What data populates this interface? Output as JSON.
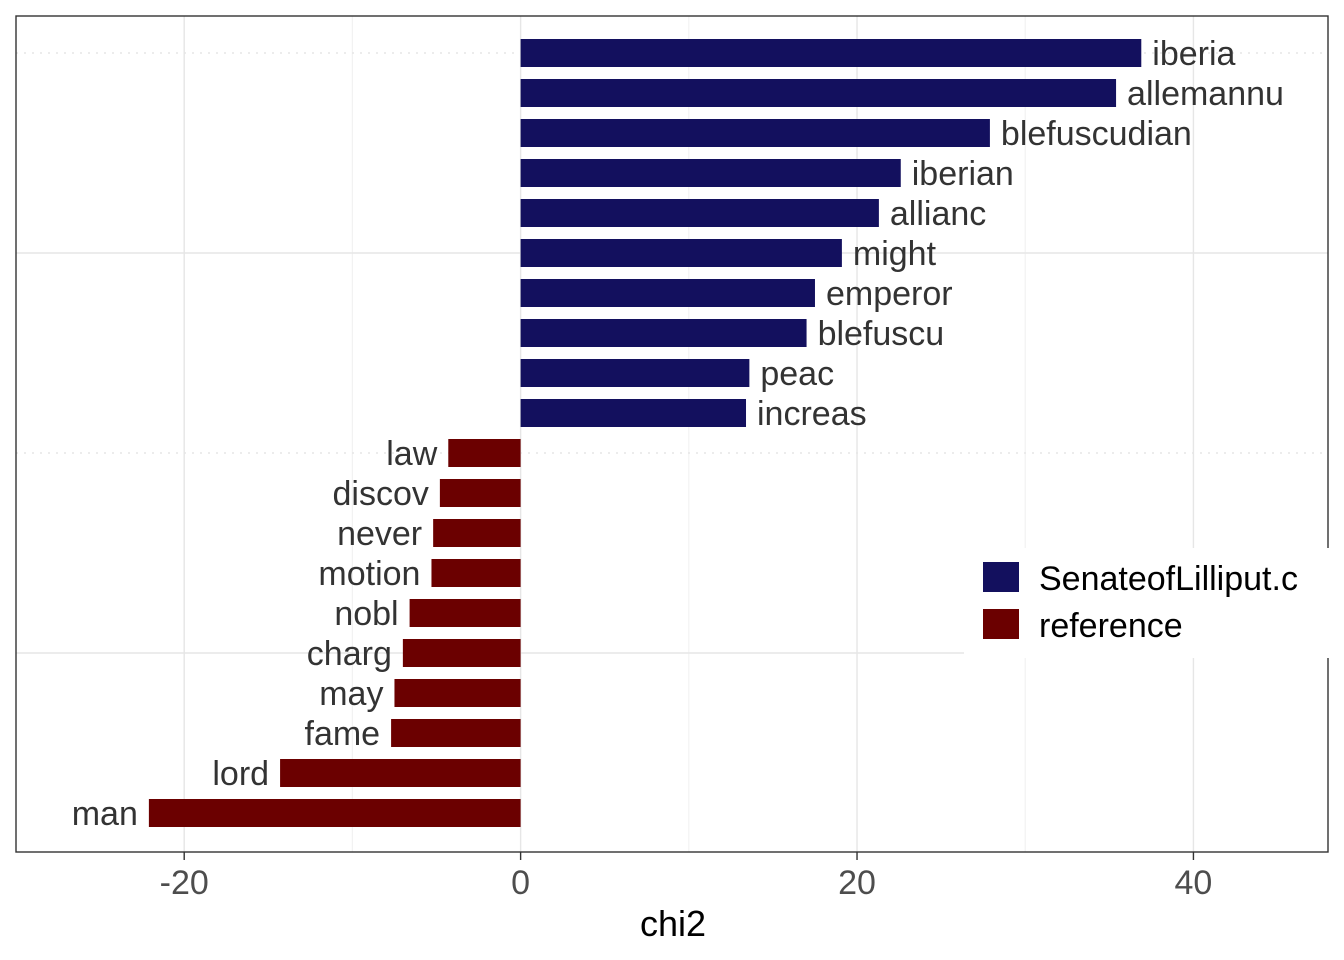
{
  "chart_data": {
    "type": "bar",
    "orientation": "horizontal",
    "xlabel": "chi2",
    "ylabel": "",
    "xlim": [
      -30,
      48
    ],
    "x_ticks": [
      -20,
      0,
      20,
      40
    ],
    "x_tick_labels": [
      "-20",
      "0",
      "20",
      "40"
    ],
    "grid": true,
    "legend_position": "right",
    "colors": {
      "target": "#13105e",
      "reference": "#6b0000",
      "grid_major": "#e6e6e6",
      "grid_minor": "#f2f2f2",
      "panel_border": "#333333"
    },
    "series": [
      {
        "name": "SenateofLilliput.c",
        "key": "target",
        "color": "#13105e"
      },
      {
        "name": "reference",
        "key": "reference",
        "color": "#6b0000"
      }
    ],
    "bars": [
      {
        "feature": "iberia",
        "value": 36.9,
        "group": "target"
      },
      {
        "feature": "allemannu",
        "value": 35.4,
        "group": "target"
      },
      {
        "feature": "blefuscudian",
        "value": 27.9,
        "group": "target"
      },
      {
        "feature": "iberian",
        "value": 22.6,
        "group": "target"
      },
      {
        "feature": "allianc",
        "value": 21.3,
        "group": "target"
      },
      {
        "feature": "might",
        "value": 19.1,
        "group": "target"
      },
      {
        "feature": "emperor",
        "value": 17.5,
        "group": "target"
      },
      {
        "feature": "blefuscu",
        "value": 17.0,
        "group": "target"
      },
      {
        "feature": "peac",
        "value": 13.6,
        "group": "target"
      },
      {
        "feature": "increas",
        "value": 13.4,
        "group": "target"
      },
      {
        "feature": "law",
        "value": -4.3,
        "group": "reference"
      },
      {
        "feature": "discov",
        "value": -4.8,
        "group": "reference"
      },
      {
        "feature": "never",
        "value": -5.2,
        "group": "reference"
      },
      {
        "feature": "motion",
        "value": -5.3,
        "group": "reference"
      },
      {
        "feature": "nobl",
        "value": -6.6,
        "group": "reference"
      },
      {
        "feature": "charg",
        "value": -7.0,
        "group": "reference"
      },
      {
        "feature": "may",
        "value": -7.5,
        "group": "reference"
      },
      {
        "feature": "fame",
        "value": -7.7,
        "group": "reference"
      },
      {
        "feature": "lord",
        "value": -14.3,
        "group": "reference"
      },
      {
        "feature": "man",
        "value": -22.1,
        "group": "reference"
      }
    ]
  }
}
